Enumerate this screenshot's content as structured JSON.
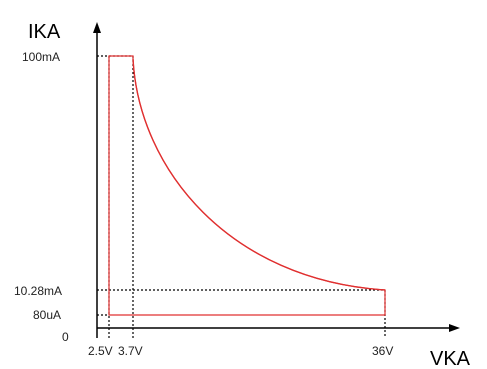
{
  "chart_data": {
    "type": "line",
    "title": "",
    "xlabel": "VKA",
    "ylabel": "IKA",
    "origin_label": "0",
    "x_ticks": [
      "2.5V",
      "3.7V",
      "36V"
    ],
    "y_ticks": [
      "100mA",
      "10.28mA",
      "80uA"
    ],
    "series": [
      {
        "color": "#e03030",
        "curve": "hyperbolic power limit, IKA x VKA approximately constant",
        "points": [
          {
            "x": "3.7V",
            "y": "100mA"
          },
          {
            "x": "36V",
            "y": "10.28mA"
          }
        ]
      }
    ],
    "region_outline": [
      {
        "x": "2.5V",
        "y": "80uA"
      },
      {
        "x": "2.5V",
        "y": "100mA"
      },
      {
        "x": "3.7V",
        "y": "100mA"
      },
      {
        "x": "36V",
        "y": "10.28mA"
      },
      {
        "x": "36V",
        "y": "80uA"
      }
    ],
    "grid": false,
    "legend": "none"
  },
  "colors": {
    "axis": "#000000",
    "curve": "#e03030",
    "guide": "#000000"
  }
}
